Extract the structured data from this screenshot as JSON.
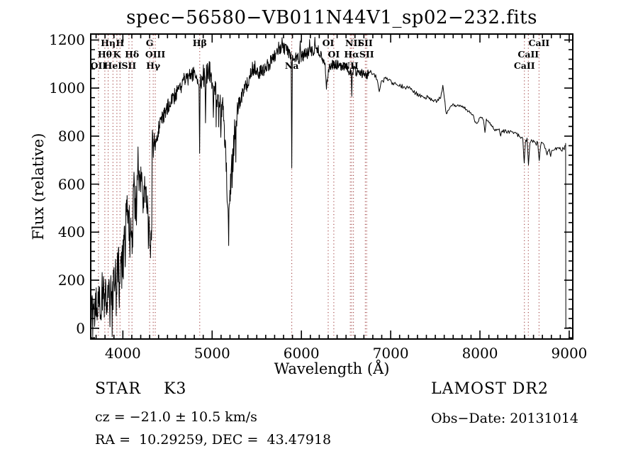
{
  "title": "spec−56580−VB011N44V1_sp02−232.fits",
  "annotations": {
    "class_label": "STAR    K3",
    "survey": "LAMOST DR2",
    "cz": "cz = −21.0 ± 10.5 km/s",
    "obs_date": "Obs−Date: 20131014",
    "coords": "RA =  10.29259, DEC =  43.47918"
  },
  "chart_data": {
    "type": "line",
    "title": "spec−56580−VB011N44V1_sp02−232.fits",
    "xlabel": "Wavelength (Å)",
    "ylabel": "Flux (relative)",
    "xlim": [
      3640,
      9040
    ],
    "ylim": [
      -45,
      1225
    ],
    "x_ticks": [
      4000,
      5000,
      6000,
      7000,
      8000,
      9000
    ],
    "y_ticks": [
      0,
      200,
      400,
      600,
      800,
      1000,
      1200
    ],
    "x_minor_step": 100,
    "y_minor_step": 40,
    "grid": false,
    "marker_line_color": "#a04040",
    "trace_color": "#000000",
    "spectral_lines": [
      {
        "label": "OII",
        "wavelength": 3727,
        "row": 3
      },
      {
        "label": "Hθ",
        "wavelength": 3798,
        "row": 2
      },
      {
        "label": "Hη",
        "wavelength": 3835,
        "row": 1
      },
      {
        "label": "HeI",
        "wavelength": 3889,
        "row": 3
      },
      {
        "label": "K",
        "wavelength": 3933,
        "row": 2
      },
      {
        "label": "H",
        "wavelength": 3968,
        "row": 1
      },
      {
        "label": "SII",
        "wavelength": 4068,
        "row": 3
      },
      {
        "label": "Hδ",
        "wavelength": 4102,
        "row": 2
      },
      {
        "label": "G",
        "wavelength": 4300,
        "row": 1
      },
      {
        "label": "Hγ",
        "wavelength": 4340,
        "row": 3
      },
      {
        "label": "OIII",
        "wavelength": 4363,
        "row": 2
      },
      {
        "label": "Hβ",
        "wavelength": 4861,
        "row": 1
      },
      {
        "label": "Na",
        "wavelength": 5892,
        "row": 3
      },
      {
        "label": "OI",
        "wavelength": 6300,
        "row": 1
      },
      {
        "label": "OI",
        "wavelength": 6363,
        "row": 2
      },
      {
        "label": "NII",
        "wavelength": 6548,
        "row": 3
      },
      {
        "label": "Hα",
        "wavelength": 6563,
        "row": 2
      },
      {
        "label": "NII",
        "wavelength": 6583,
        "row": 1
      },
      {
        "label": "SII",
        "wavelength": 6716,
        "row": 1
      },
      {
        "label": "SII",
        "wavelength": 6731,
        "row": 2
      },
      {
        "label": "CaII",
        "wavelength": 8498,
        "row": 3
      },
      {
        "label": "CaII",
        "wavelength": 8542,
        "row": 2
      },
      {
        "label": "CaII",
        "wavelength": 8662,
        "row": 1
      }
    ],
    "envelope": [
      [
        3645,
        15
      ],
      [
        3655,
        90
      ],
      [
        3665,
        30
      ],
      [
        3675,
        110
      ],
      [
        3685,
        40
      ],
      [
        3700,
        120
      ],
      [
        3715,
        70
      ],
      [
        3730,
        150
      ],
      [
        3745,
        90
      ],
      [
        3760,
        110
      ],
      [
        3775,
        210
      ],
      [
        3790,
        90
      ],
      [
        3805,
        150
      ],
      [
        3820,
        80
      ],
      [
        3835,
        160
      ],
      [
        3850,
        120
      ],
      [
        3865,
        170
      ],
      [
        3880,
        140
      ],
      [
        3895,
        190
      ],
      [
        3910,
        230
      ],
      [
        3925,
        210
      ],
      [
        3940,
        250
      ],
      [
        3955,
        270
      ],
      [
        3970,
        240
      ],
      [
        3985,
        330
      ],
      [
        4000,
        390
      ],
      [
        4015,
        430
      ],
      [
        4030,
        460
      ],
      [
        4045,
        500
      ],
      [
        4060,
        460
      ],
      [
        4075,
        470
      ],
      [
        4090,
        420
      ],
      [
        4105,
        480
      ],
      [
        4120,
        620
      ],
      [
        4135,
        570
      ],
      [
        4150,
        590
      ],
      [
        4165,
        620
      ],
      [
        4180,
        600
      ],
      [
        4195,
        610
      ],
      [
        4210,
        630
      ],
      [
        4225,
        610
      ],
      [
        4240,
        580
      ],
      [
        4255,
        560
      ],
      [
        4270,
        520
      ],
      [
        4285,
        440
      ],
      [
        4300,
        380
      ],
      [
        4312,
        365
      ],
      [
        4322,
        420
      ],
      [
        4332,
        780
      ],
      [
        4342,
        720
      ],
      [
        4352,
        800
      ],
      [
        4365,
        760
      ],
      [
        4380,
        800
      ],
      [
        4400,
        830
      ],
      [
        4425,
        855
      ],
      [
        4450,
        880
      ],
      [
        4475,
        905
      ],
      [
        4500,
        920
      ],
      [
        4530,
        935
      ],
      [
        4560,
        955
      ],
      [
        4590,
        975
      ],
      [
        4620,
        995
      ],
      [
        4650,
        1010
      ],
      [
        4680,
        1035
      ],
      [
        4710,
        1030
      ],
      [
        4740,
        1045
      ],
      [
        4770,
        1055
      ],
      [
        4800,
        1065
      ],
      [
        4825,
        1045
      ],
      [
        4845,
        1030
      ],
      [
        4875,
        1025
      ],
      [
        4900,
        1045
      ],
      [
        4925,
        1055
      ],
      [
        4950,
        1065
      ],
      [
        4975,
        1070
      ],
      [
        5000,
        1045
      ],
      [
        5025,
        1000
      ],
      [
        5050,
        965
      ],
      [
        5075,
        950
      ],
      [
        5100,
        930
      ],
      [
        5125,
        905
      ],
      [
        5150,
        740
      ],
      [
        5170,
        560
      ],
      [
        5185,
        480
      ],
      [
        5200,
        570
      ],
      [
        5215,
        660
      ],
      [
        5230,
        740
      ],
      [
        5250,
        830
      ],
      [
        5275,
        895
      ],
      [
        5300,
        935
      ],
      [
        5330,
        965
      ],
      [
        5360,
        990
      ],
      [
        5390,
        1015
      ],
      [
        5420,
        1050
      ],
      [
        5450,
        1080
      ],
      [
        5480,
        1085
      ],
      [
        5510,
        1070
      ],
      [
        5540,
        1065
      ],
      [
        5570,
        1075
      ],
      [
        5600,
        1085
      ],
      [
        5630,
        1095
      ],
      [
        5660,
        1110
      ],
      [
        5690,
        1125
      ],
      [
        5720,
        1140
      ],
      [
        5750,
        1155
      ],
      [
        5780,
        1170
      ],
      [
        5810,
        1165
      ],
      [
        5840,
        1155
      ],
      [
        5865,
        1145
      ],
      [
        5905,
        1110
      ],
      [
        5930,
        1125
      ],
      [
        5960,
        1120
      ],
      [
        6000,
        1130
      ],
      [
        6040,
        1140
      ],
      [
        6080,
        1150
      ],
      [
        6120,
        1158
      ],
      [
        6160,
        1160
      ],
      [
        6200,
        1150
      ],
      [
        6240,
        1132
      ],
      [
        6270,
        1070
      ],
      [
        6290,
        1035
      ],
      [
        6310,
        1080
      ],
      [
        6330,
        1095
      ],
      [
        6360,
        1098
      ],
      [
        6400,
        1098
      ],
      [
        6440,
        1092
      ],
      [
        6480,
        1088
      ],
      [
        6520,
        1082
      ],
      [
        6545,
        1060
      ],
      [
        6580,
        1075
      ],
      [
        6610,
        1068
      ],
      [
        6650,
        1068
      ],
      [
        6690,
        1058
      ],
      [
        6730,
        1052
      ],
      [
        6770,
        1068
      ],
      [
        6810,
        1058
      ],
      [
        6845,
        1040
      ],
      [
        6875,
        1012
      ],
      [
        6905,
        1028
      ],
      [
        6940,
        1038
      ],
      [
        6980,
        1030
      ],
      [
        7020,
        1022
      ],
      [
        7060,
        1020
      ],
      [
        7110,
        1010
      ],
      [
        7160,
        1002
      ],
      [
        7210,
        998
      ],
      [
        7260,
        985
      ],
      [
        7310,
        972
      ],
      [
        7360,
        958
      ],
      [
        7410,
        962
      ],
      [
        7460,
        952
      ],
      [
        7510,
        948
      ],
      [
        7555,
        958
      ],
      [
        7585,
        1005
      ],
      [
        7605,
        955
      ],
      [
        7625,
        905
      ],
      [
        7650,
        902
      ],
      [
        7675,
        925
      ],
      [
        7710,
        932
      ],
      [
        7750,
        925
      ],
      [
        7790,
        920
      ],
      [
        7830,
        915
      ],
      [
        7870,
        905
      ],
      [
        7910,
        895
      ],
      [
        7945,
        862
      ],
      [
        7975,
        855
      ],
      [
        8005,
        878
      ],
      [
        8045,
        870
      ],
      [
        8085,
        862
      ],
      [
        8125,
        848
      ],
      [
        8165,
        822
      ],
      [
        8205,
        835
      ],
      [
        8245,
        825
      ],
      [
        8285,
        818
      ],
      [
        8325,
        815
      ],
      [
        8365,
        818
      ],
      [
        8405,
        808
      ],
      [
        8445,
        798
      ],
      [
        8475,
        790
      ],
      [
        8520,
        785
      ],
      [
        8565,
        778
      ],
      [
        8600,
        775
      ],
      [
        8635,
        770
      ],
      [
        8690,
        768
      ],
      [
        8725,
        758
      ],
      [
        8755,
        725
      ],
      [
        8795,
        752
      ],
      [
        8835,
        742
      ],
      [
        8875,
        748
      ],
      [
        8915,
        742
      ],
      [
        8955,
        755
      ],
      [
        8958,
        770
      ]
    ],
    "noise_bands": [
      [
        3640,
        3700,
        65
      ],
      [
        3700,
        4010,
        72
      ],
      [
        4010,
        4330,
        60
      ],
      [
        4330,
        4900,
        33
      ],
      [
        4900,
        5140,
        52
      ],
      [
        5140,
        5290,
        58
      ],
      [
        5290,
        5700,
        30
      ],
      [
        5700,
        6280,
        25
      ],
      [
        6280,
        6760,
        20
      ],
      [
        6760,
        7600,
        9
      ],
      [
        7600,
        8480,
        8
      ],
      [
        8480,
        9040,
        9
      ]
    ],
    "narrow_features": [
      [
        3933,
        140
      ],
      [
        3968,
        185
      ],
      [
        4026,
        255
      ],
      [
        4078,
        295
      ],
      [
        4102,
        310
      ],
      [
        4152,
        430
      ],
      [
        4170,
        755
      ],
      [
        4226,
        480
      ],
      [
        4304,
        345
      ],
      [
        4332,
        825
      ],
      [
        4861,
        728
      ],
      [
        4925,
        855
      ],
      [
        5012,
        878
      ],
      [
        5098,
        795
      ],
      [
        5170,
        520
      ],
      [
        5745,
        1192
      ],
      [
        5782,
        1210
      ],
      [
        5892,
        668
      ],
      [
        5985,
        1196
      ],
      [
        6092,
        1202
      ],
      [
        6150,
        1212
      ],
      [
        6282,
        995
      ],
      [
        6563,
        966
      ],
      [
        6872,
        985
      ],
      [
        7622,
        893
      ],
      [
        8055,
        815
      ],
      [
        8230,
        800
      ],
      [
        8498,
        688
      ],
      [
        8542,
        680
      ],
      [
        8662,
        698
      ],
      [
        8792,
        715
      ]
    ],
    "cutoff": {
      "drop_wavelength": 8960,
      "tail_flux": 2
    }
  }
}
